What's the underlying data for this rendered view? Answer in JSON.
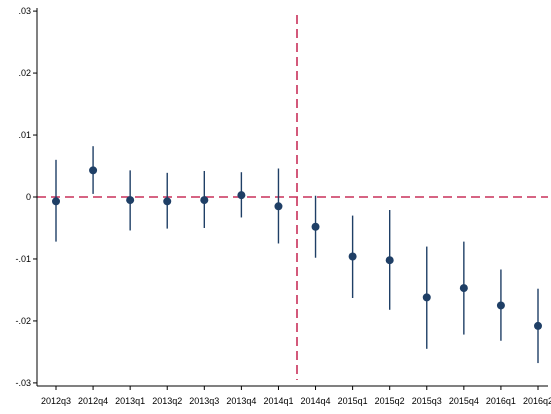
{
  "chart_data": {
    "type": "scatter",
    "title": "",
    "xlabel": "",
    "ylabel": "",
    "x": [
      "2012q3",
      "2012q4",
      "2013q1",
      "2013q2",
      "2013q3",
      "2013q4",
      "2014q1",
      "2014q4",
      "2015q1",
      "2015q2",
      "2015q3",
      "2015q4",
      "2016q1",
      "2016q2"
    ],
    "estimates": [
      -0.0007,
      0.0043,
      -0.0005,
      -0.0007,
      -0.0005,
      0.0003,
      -0.0015,
      -0.0048,
      -0.0096,
      -0.0102,
      -0.0162,
      -0.0147,
      -0.0175,
      -0.0208
    ],
    "ci_low": [
      -0.0072,
      0.0005,
      -0.0054,
      -0.0051,
      -0.005,
      -0.0033,
      -0.0075,
      -0.0098,
      -0.0163,
      -0.0182,
      -0.0245,
      -0.0222,
      -0.0232,
      -0.0268
    ],
    "ci_high": [
      0.006,
      0.0082,
      0.0043,
      0.0039,
      0.0042,
      0.004,
      0.0046,
      0.0002,
      -0.003,
      -0.0021,
      -0.008,
      -0.0072,
      -0.0117,
      -0.0148
    ],
    "ylim": [
      -0.0305,
      0.0305
    ],
    "yticks": [
      -0.03,
      -0.02,
      -0.01,
      0,
      0.01,
      0.02,
      0.03
    ],
    "ytick_labels": [
      "-.03",
      "-.02",
      "-.01",
      "0",
      ".01",
      ".02",
      ".03"
    ],
    "reference_lines": {
      "horizontal_y": 0,
      "vertical_between": [
        "2014q1",
        "2014q4"
      ]
    },
    "grid": false,
    "legend": "none",
    "colors": {
      "marker": "#1f3f66",
      "errorbar": "#1f3f66",
      "reference": "#c8305a"
    }
  }
}
